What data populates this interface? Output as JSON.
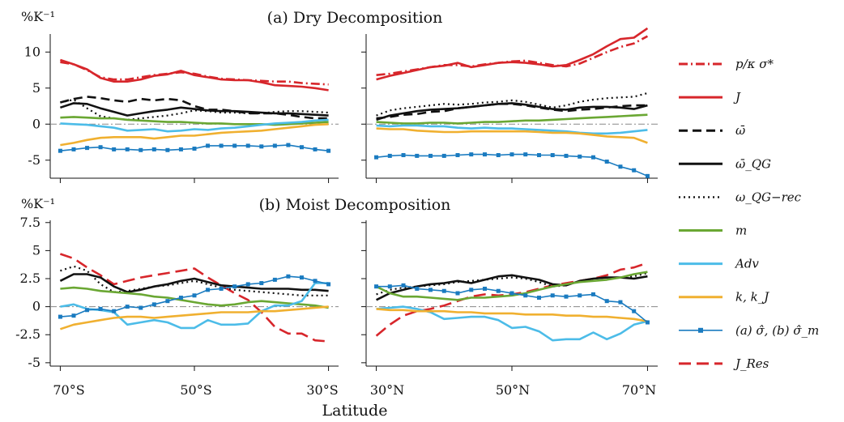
{
  "figure": {
    "xlabel": "Latitude",
    "x_ticks_left": [
      "70°S",
      "50°S",
      "30°S"
    ],
    "x_ticks_right": [
      "30°N",
      "50°N",
      "70°N"
    ]
  },
  "colors": {
    "red": "#d7262b",
    "black": "#111111",
    "green": "#6aa733",
    "cyan": "#4cbce8",
    "orange": "#f0b030",
    "blue": "#1a7bc0",
    "zero_line": "#888888"
  },
  "legend": [
    {
      "key": "sigma_star",
      "label": "p/κ σ*",
      "color": "#d7262b",
      "dash": "dashdot"
    },
    {
      "key": "J",
      "label": "J",
      "color": "#d7262b",
      "dash": "solid"
    },
    {
      "key": "omega",
      "label": "ω̄",
      "color": "#111111",
      "dash": "dashed"
    },
    {
      "key": "omega_qg",
      "label": "ω̄_QG",
      "color": "#111111",
      "dash": "solid"
    },
    {
      "key": "omega_qg_rec",
      "label": "ω_QG−rec",
      "color": "#111111",
      "dash": "dotted"
    },
    {
      "key": "m",
      "label": "m",
      "color": "#6aa733",
      "dash": "solid"
    },
    {
      "key": "adv",
      "label": "Adv",
      "color": "#4cbce8",
      "dash": "solid"
    },
    {
      "key": "k",
      "label": "k, k_J",
      "color": "#f0b030",
      "dash": "solid"
    },
    {
      "key": "sigma_hat",
      "label": "(a) σ̂, (b) σ̂_m",
      "color": "#1a7bc0",
      "dash": "marker"
    },
    {
      "key": "J_res",
      "label": "J_Res",
      "color": "#d7262b",
      "dash": "longdash"
    }
  ],
  "chart_data": [
    {
      "type": "line",
      "title": "(a) Dry Decomposition",
      "ylabel": "%K⁻¹",
      "ylim": [
        -7.5,
        12.5
      ],
      "yticks": [
        -5,
        0,
        5,
        10
      ],
      "ytick_labels": [
        "-5",
        "0",
        "5",
        "10"
      ],
      "grid": false,
      "south_x": [
        -70,
        -68,
        -66,
        -64,
        -62,
        -60,
        -58,
        -56,
        -54,
        -52,
        -50,
        -48,
        -46,
        -44,
        -42,
        -40,
        -38,
        -36,
        -34,
        -32,
        -30
      ],
      "north_x": [
        30,
        32,
        34,
        36,
        38,
        40,
        42,
        44,
        46,
        48,
        50,
        52,
        54,
        56,
        58,
        60,
        62,
        64,
        66,
        68,
        70
      ],
      "series": [
        {
          "key": "sigma_star",
          "south": [
            8.6,
            8.3,
            7.5,
            6.5,
            6.2,
            6.2,
            6.5,
            6.8,
            7.0,
            7.2,
            7.0,
            6.6,
            6.3,
            6.2,
            6.1,
            6.0,
            5.9,
            5.9,
            5.7,
            5.6,
            5.5
          ],
          "north": [
            6.8,
            7.0,
            7.3,
            7.6,
            7.9,
            8.2,
            8.2,
            8.0,
            8.3,
            8.5,
            8.7,
            8.8,
            8.5,
            8.2,
            8.0,
            8.4,
            9.2,
            10.0,
            10.7,
            11.2,
            12.2
          ]
        },
        {
          "key": "J",
          "south": [
            8.9,
            8.3,
            7.6,
            6.4,
            5.9,
            5.9,
            6.2,
            6.7,
            6.9,
            7.4,
            6.8,
            6.5,
            6.2,
            6.1,
            6.1,
            5.8,
            5.4,
            5.3,
            5.2,
            5.0,
            4.7
          ],
          "north": [
            6.2,
            6.7,
            7.1,
            7.5,
            7.9,
            8.1,
            8.5,
            7.9,
            8.2,
            8.5,
            8.6,
            8.5,
            8.3,
            8.0,
            8.2,
            8.9,
            9.7,
            10.8,
            11.8,
            12.0,
            13.3
          ]
        },
        {
          "key": "omega",
          "south": [
            3.0,
            3.5,
            3.8,
            3.6,
            3.3,
            3.1,
            3.5,
            3.3,
            3.5,
            3.3,
            2.5,
            2.0,
            2.0,
            1.8,
            1.5,
            1.5,
            1.5,
            1.3,
            1.0,
            0.8,
            0.8
          ],
          "north": [
            0.8,
            1.0,
            1.3,
            1.4,
            1.7,
            1.8,
            2.2,
            2.4,
            2.6,
            2.8,
            2.8,
            2.6,
            2.3,
            2.0,
            1.8,
            2.0,
            2.1,
            2.3,
            2.5,
            2.6,
            2.6
          ]
        },
        {
          "key": "omega_qg",
          "south": [
            2.3,
            2.9,
            2.8,
            2.2,
            1.7,
            1.2,
            1.5,
            1.8,
            2.0,
            2.3,
            2.1,
            1.9,
            1.8,
            1.8,
            1.7,
            1.6,
            1.5,
            1.5,
            1.4,
            1.3,
            1.2
          ],
          "north": [
            0.6,
            1.2,
            1.5,
            1.8,
            2.0,
            2.1,
            2.2,
            2.4,
            2.6,
            2.8,
            2.9,
            2.7,
            2.4,
            2.1,
            2.0,
            2.3,
            2.4,
            2.4,
            2.3,
            2.1,
            2.6
          ]
        },
        {
          "key": "omega_qg_rec",
          "south": [
            3.0,
            3.4,
            2.2,
            1.1,
            0.8,
            0.6,
            0.8,
            1.0,
            1.2,
            1.5,
            1.9,
            1.8,
            1.6,
            1.6,
            1.5,
            1.5,
            1.7,
            1.8,
            1.8,
            1.7,
            1.6
          ],
          "north": [
            1.2,
            1.9,
            2.2,
            2.4,
            2.6,
            2.8,
            2.7,
            2.8,
            3.0,
            3.1,
            3.3,
            3.1,
            2.7,
            2.3,
            2.6,
            3.1,
            3.4,
            3.6,
            3.7,
            3.8,
            4.3
          ]
        },
        {
          "key": "m",
          "south": [
            0.9,
            1.0,
            0.9,
            0.8,
            0.8,
            0.6,
            0.5,
            0.4,
            0.3,
            0.3,
            0.2,
            0.1,
            0.1,
            0.0,
            0.0,
            0.0,
            -0.1,
            0.0,
            0.1,
            0.2,
            0.3
          ],
          "north": [
            0.3,
            0.2,
            0.1,
            0.1,
            0.2,
            0.2,
            0.1,
            0.2,
            0.3,
            0.3,
            0.4,
            0.5,
            0.5,
            0.6,
            0.7,
            0.8,
            0.9,
            1.0,
            1.1,
            1.2,
            1.3
          ]
        },
        {
          "key": "adv",
          "south": [
            0.1,
            0.0,
            -0.1,
            -0.3,
            -0.5,
            -0.9,
            -0.8,
            -0.7,
            -1.0,
            -0.9,
            -0.7,
            -0.8,
            -0.6,
            -0.5,
            -0.3,
            -0.1,
            0.1,
            0.2,
            0.3,
            0.5,
            0.6
          ],
          "north": [
            -0.2,
            -0.3,
            -0.2,
            -0.2,
            -0.3,
            -0.3,
            -0.5,
            -0.6,
            -0.5,
            -0.6,
            -0.6,
            -0.7,
            -0.8,
            -0.9,
            -1.0,
            -1.2,
            -1.3,
            -1.3,
            -1.2,
            -1.0,
            -0.8
          ]
        },
        {
          "key": "k",
          "south": [
            -2.9,
            -2.6,
            -2.2,
            -1.9,
            -1.8,
            -1.8,
            -1.8,
            -2.0,
            -1.8,
            -1.6,
            -1.6,
            -1.4,
            -1.2,
            -1.1,
            -1.0,
            -0.9,
            -0.7,
            -0.5,
            -0.3,
            -0.1,
            0.0
          ],
          "north": [
            -0.6,
            -0.7,
            -0.7,
            -0.9,
            -1.0,
            -1.1,
            -1.1,
            -1.0,
            -1.0,
            -1.0,
            -1.0,
            -1.0,
            -1.1,
            -1.2,
            -1.2,
            -1.3,
            -1.5,
            -1.7,
            -1.8,
            -1.9,
            -2.6
          ]
        },
        {
          "key": "sigma_hat",
          "south": [
            -3.7,
            -3.5,
            -3.3,
            -3.2,
            -3.5,
            -3.5,
            -3.6,
            -3.5,
            -3.6,
            -3.5,
            -3.4,
            -3.0,
            -3.0,
            -3.0,
            -3.0,
            -3.1,
            -3.0,
            -2.9,
            -3.2,
            -3.5,
            -3.7
          ],
          "north": [
            -4.6,
            -4.4,
            -4.3,
            -4.4,
            -4.4,
            -4.4,
            -4.3,
            -4.2,
            -4.2,
            -4.3,
            -4.2,
            -4.2,
            -4.3,
            -4.3,
            -4.4,
            -4.5,
            -4.6,
            -5.2,
            -5.9,
            -6.4,
            -7.2
          ]
        }
      ]
    },
    {
      "type": "line",
      "title": "(b) Moist Decomposition",
      "ylabel": "%K⁻¹",
      "ylim": [
        -5.3,
        7.7
      ],
      "yticks": [
        -5,
        -2.5,
        0,
        2.5,
        5,
        7.5
      ],
      "ytick_labels": [
        "-5",
        "-2.5",
        "0",
        "2.5",
        "5",
        "7.5"
      ],
      "grid": false,
      "south_x": [
        -70,
        -68,
        -66,
        -64,
        -62,
        -60,
        -58,
        -56,
        -54,
        -52,
        -50,
        -48,
        -46,
        -44,
        -42,
        -40,
        -38,
        -36,
        -34,
        -32,
        -30
      ],
      "north_x": [
        30,
        32,
        34,
        36,
        38,
        40,
        42,
        44,
        46,
        48,
        50,
        52,
        54,
        56,
        58,
        60,
        62,
        64,
        66,
        68,
        70
      ],
      "series": [
        {
          "key": "J_res",
          "south": [
            4.7,
            4.3,
            3.5,
            2.8,
            2.0,
            2.3,
            2.6,
            2.8,
            3.0,
            3.2,
            3.4,
            2.6,
            1.9,
            1.2,
            0.6,
            -0.5,
            -1.8,
            -2.4,
            -2.4,
            -3.0,
            -3.1
          ],
          "north": [
            -2.6,
            -1.6,
            -0.8,
            -0.4,
            -0.2,
            0.1,
            0.5,
            0.9,
            1.1,
            1.0,
            1.1,
            1.3,
            1.6,
            1.9,
            2.1,
            2.3,
            2.5,
            2.8,
            3.3,
            3.5,
            3.9
          ]
        },
        {
          "key": "omega_qg",
          "south": [
            2.3,
            2.9,
            2.9,
            2.6,
            1.8,
            1.3,
            1.5,
            1.8,
            2.0,
            2.3,
            2.5,
            2.2,
            1.9,
            1.8,
            1.7,
            1.6,
            1.6,
            1.6,
            1.5,
            1.5,
            1.4
          ],
          "north": [
            0.6,
            1.2,
            1.5,
            1.8,
            2.0,
            2.1,
            2.3,
            2.1,
            2.4,
            2.7,
            2.8,
            2.6,
            2.4,
            2.0,
            1.9,
            2.3,
            2.5,
            2.6,
            2.6,
            2.5,
            2.7
          ]
        },
        {
          "key": "omega_qg_rec",
          "south": [
            3.2,
            3.6,
            3.2,
            2.0,
            1.3,
            1.4,
            1.6,
            1.8,
            1.9,
            2.1,
            2.3,
            2.0,
            1.7,
            1.5,
            1.4,
            1.3,
            1.2,
            1.1,
            1.0,
            1.0,
            1.0
          ],
          "north": [
            1.1,
            1.5,
            1.7,
            1.8,
            1.9,
            2.0,
            2.2,
            2.3,
            2.4,
            2.5,
            2.6,
            2.5,
            2.2,
            1.8,
            1.9,
            2.3,
            2.5,
            2.6,
            2.6,
            2.7,
            3.0
          ]
        },
        {
          "key": "m",
          "south": [
            1.6,
            1.7,
            1.6,
            1.4,
            1.3,
            1.2,
            1.1,
            0.9,
            0.8,
            0.6,
            0.4,
            0.2,
            0.1,
            0.2,
            0.4,
            0.5,
            0.4,
            0.3,
            0.2,
            0.1,
            -0.1
          ],
          "north": [
            1.8,
            1.2,
            0.9,
            0.9,
            0.8,
            0.7,
            0.6,
            0.8,
            0.8,
            0.9,
            1.0,
            1.2,
            1.5,
            1.8,
            2.0,
            2.2,
            2.3,
            2.4,
            2.6,
            2.9,
            3.1
          ]
        },
        {
          "key": "adv",
          "south": [
            0.0,
            0.2,
            -0.2,
            -0.3,
            -0.5,
            -1.6,
            -1.4,
            -1.2,
            -1.4,
            -1.9,
            -1.9,
            -1.2,
            -1.6,
            -1.6,
            -1.5,
            -0.4,
            0.1,
            0.1,
            0.5,
            2.1,
            2.1
          ],
          "north": [
            -0.2,
            -0.1,
            0.0,
            -0.2,
            -0.5,
            -1.1,
            -1.0,
            -0.9,
            -0.9,
            -1.2,
            -1.9,
            -1.8,
            -2.2,
            -3.0,
            -2.9,
            -2.9,
            -2.3,
            -2.9,
            -2.4,
            -1.6,
            -1.3
          ]
        },
        {
          "key": "k",
          "south": [
            -2.0,
            -1.6,
            -1.4,
            -1.2,
            -1.0,
            -0.9,
            -0.9,
            -1.0,
            -0.9,
            -0.8,
            -0.7,
            -0.6,
            -0.5,
            -0.5,
            -0.5,
            -0.4,
            -0.4,
            -0.3,
            -0.2,
            -0.1,
            0.0
          ],
          "north": [
            -0.2,
            -0.3,
            -0.3,
            -0.4,
            -0.4,
            -0.4,
            -0.5,
            -0.5,
            -0.6,
            -0.6,
            -0.6,
            -0.7,
            -0.7,
            -0.7,
            -0.8,
            -0.8,
            -0.9,
            -0.9,
            -1.0,
            -1.1,
            -1.3
          ]
        },
        {
          "key": "sigma_hat",
          "south": [
            -0.9,
            -0.8,
            -0.3,
            -0.2,
            -0.4,
            0.0,
            -0.1,
            0.2,
            0.5,
            0.8,
            1.0,
            1.5,
            1.6,
            1.8,
            2.0,
            2.1,
            2.4,
            2.7,
            2.6,
            2.3,
            2.0
          ],
          "north": [
            1.8,
            1.8,
            1.9,
            1.6,
            1.5,
            1.4,
            1.2,
            1.5,
            1.6,
            1.4,
            1.2,
            1.0,
            0.8,
            1.0,
            0.9,
            1.0,
            1.1,
            0.5,
            0.4,
            -0.4,
            -1.4
          ]
        }
      ]
    }
  ]
}
